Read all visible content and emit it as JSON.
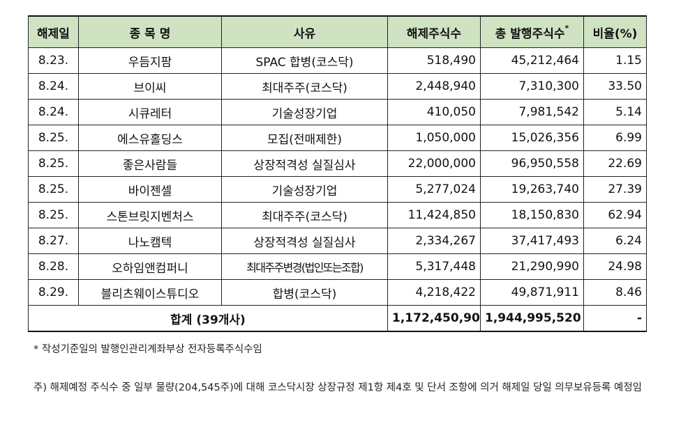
{
  "table": {
    "headers": {
      "date": "해제일",
      "name": "종 목 명",
      "reason": "사유",
      "release_shares": "해제주식수",
      "total_shares": "총 발행주식수",
      "total_shares_mark": "*",
      "ratio": "비율(%)"
    },
    "rows": [
      {
        "date": "8.23.",
        "name": "우듬지팜",
        "reason": "SPAC 합병(코스닥)",
        "release": "518,490",
        "total": "45,212,464",
        "ratio": "1.15"
      },
      {
        "date": "8.24.",
        "name": "브이씨",
        "reason": "최대주주(코스닥)",
        "release": "2,448,940",
        "total": "7,310,300",
        "ratio": "33.50"
      },
      {
        "date": "8.24.",
        "name": "시큐레터",
        "reason": "기술성장기업",
        "release": "410,050",
        "total": "7,981,542",
        "ratio": "5.14"
      },
      {
        "date": "8.25.",
        "name": "에스유홀딩스",
        "reason": "모집(전매제한)",
        "release": "1,050,000",
        "total": "15,026,356",
        "ratio": "6.99"
      },
      {
        "date": "8.25.",
        "name": "좋은사람들",
        "reason": "상장적격성 실질심사",
        "release": "22,000,000",
        "total": "96,950,558",
        "ratio": "22.69"
      },
      {
        "date": "8.25.",
        "name": "바이젠셀",
        "reason": "기술성장기업",
        "release": "5,277,024",
        "total": "19,263,740",
        "ratio": "27.39"
      },
      {
        "date": "8.25.",
        "name": "스톤브릿지벤처스",
        "reason": "최대주주(코스닥)",
        "release": "11,424,850",
        "total": "18,150,830",
        "ratio": "62.94"
      },
      {
        "date": "8.27.",
        "name": "나노캠텍",
        "reason": "상장적격성 실질심사",
        "release": "2,334,267",
        "total": "37,417,493",
        "ratio": "6.24"
      },
      {
        "date": "8.28.",
        "name": "오하임앤컴퍼니",
        "reason": "최대주주변경(법인또는조합)",
        "release": "5,317,448",
        "total": "21,290,990",
        "ratio": "24.98"
      },
      {
        "date": "8.29.",
        "name": "블리츠웨이스튜디오",
        "reason": "합병(코스닥)",
        "release": "4,218,422",
        "total": "49,871,911",
        "ratio": "8.46"
      }
    ],
    "total_row": {
      "label": "합계 (39개사)",
      "release": "1,172,450,902",
      "total": "1,944,995,520",
      "ratio": "-"
    }
  },
  "footnote": "* 작성기준일의 발행인관리계좌부상 전자등록주식수임",
  "note": "주) 해제예정 주식수 중 일부 물량(204,545주)에 대해 코스닥시장 상장규정 제1항 제4호 및 단서 조항에 의거 해제일 당일 의무보유등록 예정임"
}
